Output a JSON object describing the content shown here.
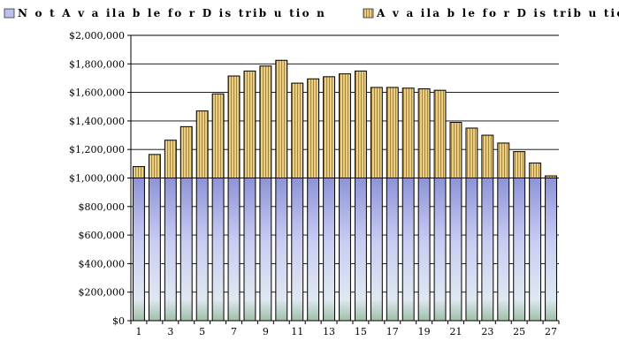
{
  "chart_data": {
    "type": "bar",
    "stacked": true,
    "legend_position": "top",
    "grid": true,
    "ylim": [
      0,
      2000000
    ],
    "y_ticks": [
      0,
      200000,
      400000,
      600000,
      800000,
      1000000,
      1200000,
      1400000,
      1600000,
      1800000,
      2000000
    ],
    "y_tick_labels": [
      "$0",
      "$200,000",
      "$400,000",
      "$600,000",
      "$800,000",
      "$1,000,000",
      "$1,200,000",
      "$1,400,000",
      "$1,600,000",
      "$1,800,000",
      "$2,000,000"
    ],
    "categories": [
      "1",
      "2",
      "3",
      "4",
      "5",
      "6",
      "7",
      "8",
      "9",
      "10",
      "11",
      "12",
      "13",
      "14",
      "15",
      "16",
      "17",
      "18",
      "19",
      "20",
      "21",
      "22",
      "23",
      "24",
      "25",
      "26",
      "27"
    ],
    "x_tick_labels": [
      "1",
      "3",
      "5",
      "7",
      "9",
      "11",
      "13",
      "15",
      "17",
      "19",
      "21",
      "23",
      "25",
      "27"
    ],
    "series": [
      {
        "name": "Not Available for Distribution",
        "color": "#8f94d6",
        "values": [
          1000000,
          1000000,
          1000000,
          1000000,
          1000000,
          1000000,
          1000000,
          1000000,
          1000000,
          1000000,
          1000000,
          1000000,
          1000000,
          1000000,
          1000000,
          1000000,
          1000000,
          1000000,
          1000000,
          1000000,
          1000000,
          1000000,
          1000000,
          1000000,
          1000000,
          1000000,
          1000000
        ]
      },
      {
        "name": "Available for Distribution",
        "color": "#d8b86a",
        "values": [
          80000,
          165000,
          265000,
          360000,
          470000,
          590000,
          715000,
          750000,
          785000,
          825000,
          665000,
          695000,
          710000,
          730000,
          750000,
          635000,
          635000,
          630000,
          625000,
          615000,
          390000,
          350000,
          300000,
          245000,
          185000,
          105000,
          15000
        ]
      }
    ]
  },
  "legend": {
    "not_available": "N o t  A v a ila b le  fo r  D is trib u tio n",
    "available": "A v a ila b le  fo r  D is trib u tio n"
  }
}
